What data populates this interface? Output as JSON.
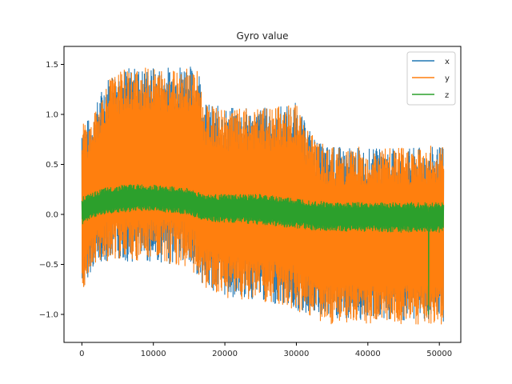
{
  "chart_data": {
    "type": "line",
    "title": "Gyro value",
    "xlabel": "",
    "ylabel": "",
    "xlim": [
      -2500,
      53000
    ],
    "ylim": [
      -1.28,
      1.68
    ],
    "x_ticks": [
      0,
      10000,
      20000,
      30000,
      40000,
      50000
    ],
    "x_tick_labels": [
      "0",
      "10000",
      "20000",
      "30000",
      "40000",
      "50000"
    ],
    "y_ticks": [
      -1.0,
      -0.5,
      0.0,
      0.5,
      1.0,
      1.5
    ],
    "y_tick_labels": [
      "−1.0",
      "−0.5",
      "0.0",
      "0.5",
      "1.0",
      "1.5"
    ],
    "grid": false,
    "legend_position": "top-right",
    "x_range": [
      0,
      50600
    ],
    "series": [
      {
        "name": "x",
        "color": "#1f77b4",
        "envelope": {
          "x": [
            0,
            1000,
            2000,
            3000,
            4000,
            6000,
            9000,
            12000,
            14500,
            15500,
            16500,
            17000,
            20000,
            25000,
            29000,
            30000,
            31000,
            32000,
            33000,
            35000,
            40000,
            45000,
            50600
          ],
          "upper": [
            0.97,
            0.95,
            1.1,
            1.3,
            1.42,
            1.47,
            1.47,
            1.48,
            1.53,
            1.47,
            1.45,
            1.12,
            1.07,
            1.07,
            1.1,
            1.12,
            0.95,
            0.85,
            0.72,
            0.68,
            0.66,
            0.66,
            0.68
          ],
          "lower": [
            -0.82,
            -0.6,
            -0.5,
            -0.47,
            -0.46,
            -0.47,
            -0.48,
            -0.49,
            -0.52,
            -0.58,
            -0.62,
            -0.72,
            -0.82,
            -0.87,
            -0.92,
            -0.97,
            -1.0,
            -1.02,
            -1.05,
            -1.06,
            -1.06,
            -1.06,
            -1.08
          ]
        }
      },
      {
        "name": "y",
        "color": "#ff7f0e",
        "envelope": {
          "x": [
            0,
            1000,
            2000,
            3000,
            4000,
            6000,
            9000,
            12000,
            14500,
            15500,
            16500,
            17000,
            20000,
            25000,
            29000,
            30000,
            31000,
            32000,
            33000,
            35000,
            40000,
            45000,
            50600
          ],
          "upper": [
            0.97,
            0.9,
            1.05,
            1.25,
            1.38,
            1.45,
            1.47,
            1.46,
            1.5,
            1.46,
            1.43,
            1.1,
            1.05,
            1.06,
            1.1,
            1.12,
            0.95,
            0.85,
            0.72,
            0.68,
            0.67,
            0.67,
            0.7
          ],
          "lower": [
            -0.83,
            -0.6,
            -0.5,
            -0.47,
            -0.46,
            -0.47,
            -0.48,
            -0.49,
            -0.52,
            -0.58,
            -0.63,
            -0.73,
            -0.83,
            -0.88,
            -0.93,
            -0.98,
            -1.02,
            -1.05,
            -1.08,
            -1.1,
            -1.1,
            -1.1,
            -1.12
          ]
        }
      },
      {
        "name": "z",
        "color": "#2ca02c",
        "envelope": {
          "x": [
            0,
            1000,
            3000,
            6000,
            9000,
            12000,
            15000,
            16500,
            17500,
            20000,
            25000,
            30000,
            33000,
            35000,
            40000,
            45000,
            50600
          ],
          "upper": [
            0.18,
            0.2,
            0.26,
            0.3,
            0.3,
            0.28,
            0.26,
            0.22,
            0.2,
            0.2,
            0.2,
            0.16,
            0.14,
            0.12,
            0.12,
            0.12,
            0.12
          ],
          "lower": [
            -0.1,
            -0.06,
            0.0,
            0.02,
            0.04,
            0.02,
            0.0,
            -0.05,
            -0.08,
            -0.08,
            -0.1,
            -0.14,
            -0.16,
            -0.17,
            -0.17,
            -0.18,
            -0.18
          ]
        },
        "spike": {
          "x": 48500,
          "y": -1.0
        }
      }
    ]
  }
}
